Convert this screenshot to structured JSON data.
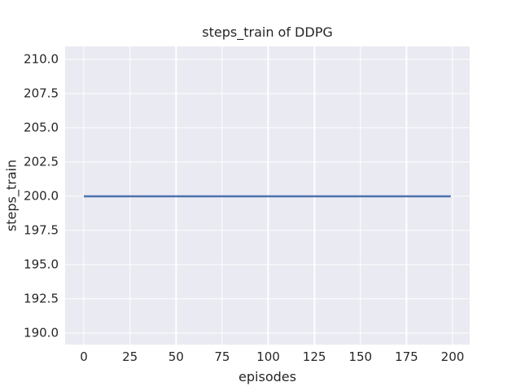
{
  "chart_data": {
    "type": "line",
    "title": "steps_train of DDPG",
    "xlabel": "episodes",
    "ylabel": "steps_train",
    "xlim": [
      -10.15,
      209.27
    ],
    "ylim": [
      189.17,
      210.95
    ],
    "grid": true,
    "legend": "none",
    "x_ticks": [
      {
        "value": 0,
        "label": "0"
      },
      {
        "value": 25,
        "label": "25"
      },
      {
        "value": 50,
        "label": "50"
      },
      {
        "value": 75,
        "label": "75"
      },
      {
        "value": 100,
        "label": "100"
      },
      {
        "value": 125,
        "label": "125"
      },
      {
        "value": 150,
        "label": "150"
      },
      {
        "value": 175,
        "label": "175"
      },
      {
        "value": 200,
        "label": "200"
      }
    ],
    "y_ticks": [
      {
        "value": 190.0,
        "label": "190.0"
      },
      {
        "value": 192.5,
        "label": "192.5"
      },
      {
        "value": 195.0,
        "label": "195.0"
      },
      {
        "value": 197.5,
        "label": "197.5"
      },
      {
        "value": 200.0,
        "label": "200.0"
      },
      {
        "value": 202.5,
        "label": "202.5"
      },
      {
        "value": 205.0,
        "label": "205.0"
      },
      {
        "value": 207.5,
        "label": "207.5"
      },
      {
        "value": 210.0,
        "label": "210.0"
      }
    ],
    "series": [
      {
        "name": "steps_train",
        "x": [
          0,
          199
        ],
        "y": [
          200,
          200
        ],
        "color": "#4c72b0",
        "note": "constant 200 steps per training episode"
      }
    ],
    "style": {
      "axes_background": "#eaeaf2",
      "grid_color": "#ffffff",
      "text_color": "#262626",
      "figure_background": "#ffffff"
    }
  }
}
